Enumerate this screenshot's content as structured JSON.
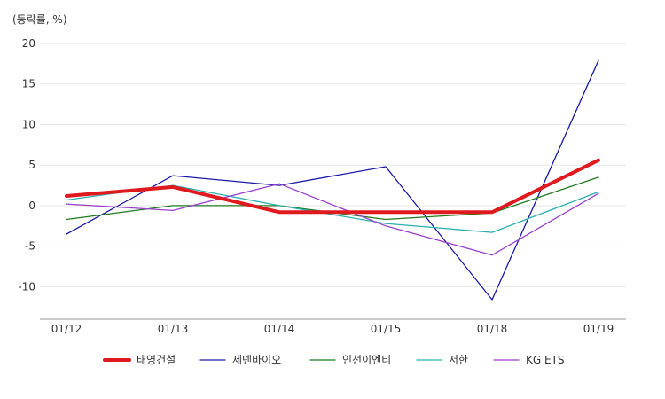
{
  "chart_data": {
    "type": "line",
    "unit_label": "(등락률, %)",
    "categories": [
      "01/12",
      "01/13",
      "01/14",
      "01/15",
      "01/18",
      "01/19"
    ],
    "ylim": [
      -14,
      20
    ],
    "yticks": [
      -10,
      -5,
      0,
      5,
      10,
      15,
      20
    ],
    "grid": true,
    "legend_position": "bottom",
    "series": [
      {
        "name": "제넨바이오",
        "color": "#1a1aa8",
        "values": [
          -3.5,
          3.7,
          2.5,
          4.8,
          -11.6,
          17.9
        ]
      },
      {
        "name": "인선이엔티",
        "color": "#1e7a1e",
        "values": [
          -1.7,
          0.0,
          0.0,
          -1.7,
          -0.9,
          3.5
        ]
      },
      {
        "name": "서한",
        "color": "#2ab0b0",
        "values": [
          0.7,
          2.5,
          0.0,
          -2.2,
          -3.3,
          1.7
        ]
      },
      {
        "name": "KG ETS",
        "color": "#9a3fcf",
        "values": [
          0.2,
          -0.6,
          2.7,
          -2.5,
          -6.1,
          1.5
        ]
      },
      {
        "name": "태영건설",
        "color": "#e0191e",
        "values": [
          1.2,
          2.3,
          -0.8,
          -0.8,
          -0.8,
          5.6
        ]
      }
    ],
    "legend_order": [
      "태영건설",
      "제넨바이오",
      "인선이엔티",
      "서한",
      "KG ETS"
    ]
  }
}
